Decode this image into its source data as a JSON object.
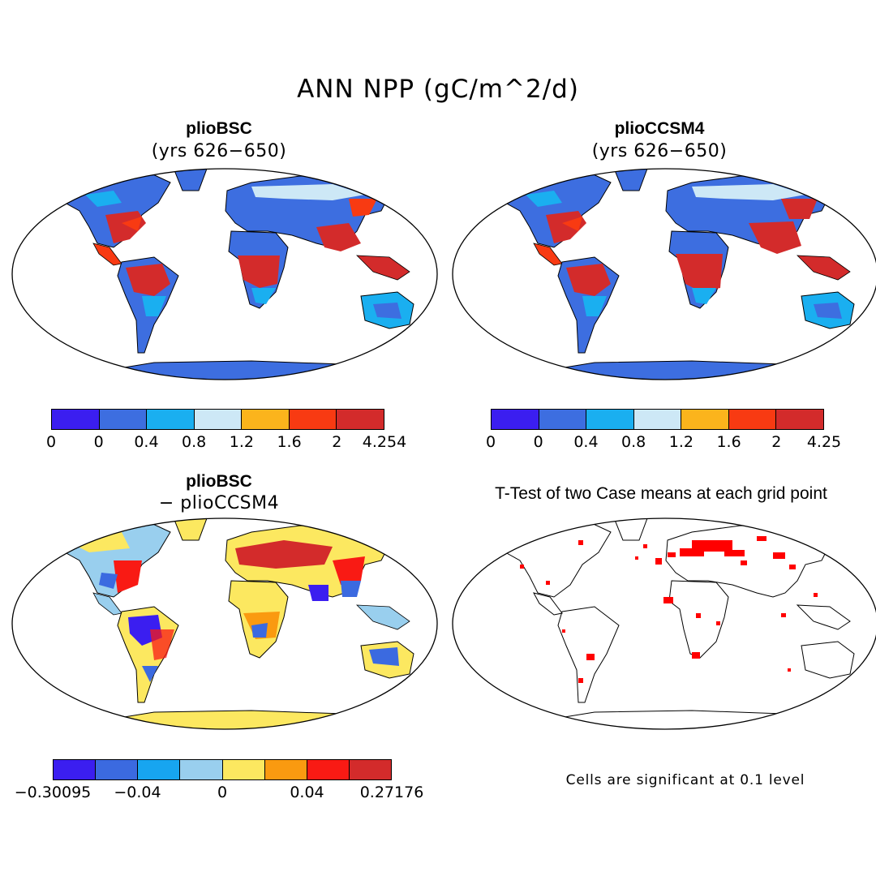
{
  "title": "ANN NPP (gC/m^2/d)",
  "panels": {
    "top_left": {
      "title": "plioBSC",
      "subtitle": "(yrs 626−650)"
    },
    "top_right": {
      "title": "plioCCSM4",
      "subtitle": "(yrs 626−650)"
    },
    "bottom_left": {
      "title": "plioBSC",
      "subtitle": "− plioCCSM4"
    },
    "bottom_right": {
      "title": "T-Test of two Case means at each grid point",
      "footnote": "Cells are significant at 0.1 level"
    }
  },
  "colorbars": {
    "top_left": {
      "colors": [
        "#3b1ef0",
        "#3d6ee0",
        "#1aaff0",
        "#cde8f6",
        "#fbb41c",
        "#f83a12",
        "#d32b2b"
      ],
      "ticks": [
        "0",
        "0",
        "0.4",
        "0.8",
        "1.2",
        "1.6",
        "2",
        "4.254"
      ]
    },
    "top_right": {
      "colors": [
        "#3b1ef0",
        "#3d6ee0",
        "#1aaff0",
        "#cde8f6",
        "#fbb41c",
        "#f83a12",
        "#d32b2b"
      ],
      "ticks": [
        "0",
        "0",
        "0.4",
        "0.8",
        "1.2",
        "1.6",
        "2",
        "4.25"
      ]
    },
    "bottom_left": {
      "colors": [
        "#3b1ef0",
        "#3b6ae0",
        "#17a5f0",
        "#99cfee",
        "#fce860",
        "#fa9a10",
        "#f91a14",
        "#d32b2b"
      ],
      "ticks": [
        "−0.30095",
        "−0.04",
        "0",
        "0.04",
        "0.27176"
      ]
    }
  },
  "map_colors": {
    "deep_blue": "#3d6ee0",
    "light_blue": "#1aaff0",
    "pale_blue": "#cde8f6",
    "orange": "#fbb41c",
    "red": "#d32b2b",
    "diff_yellow": "#fce860",
    "diff_blue": "#99cfee",
    "significant": "#ff0000"
  },
  "icons": [
    "world-map-robinson"
  ]
}
